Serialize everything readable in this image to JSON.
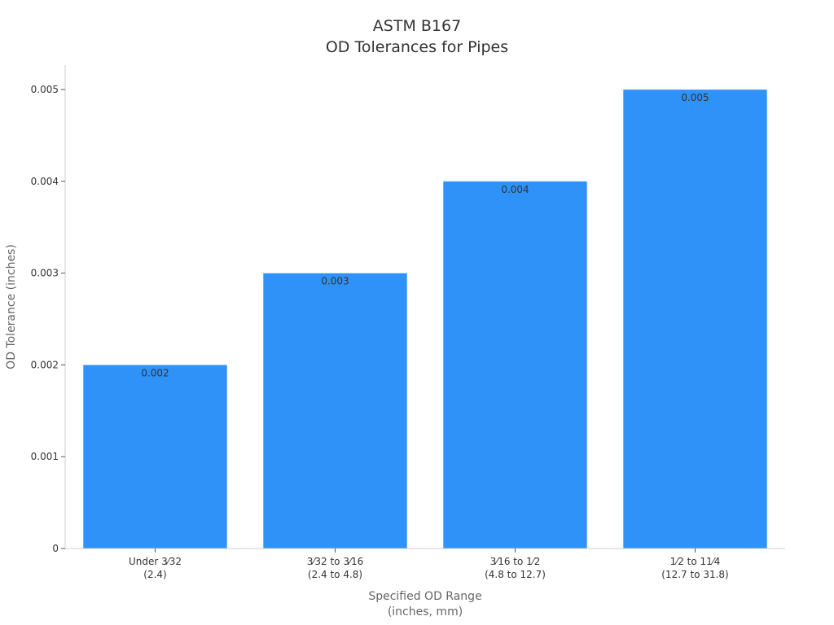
{
  "chart_data": {
    "type": "bar",
    "title_line1": "ASTM B167",
    "title_line2": "OD Tolerances for Pipes",
    "xlabel_line1": "Specified OD Range",
    "xlabel_line2": "(inches, mm)",
    "ylabel": "OD Tolerance (inches)",
    "categories": [
      {
        "line1": "Under 3⁄32",
        "line2": "(2.4)"
      },
      {
        "line1": "3⁄32 to 3⁄16",
        "line2": "(2.4 to 4.8)"
      },
      {
        "line1": "3⁄16 to 1⁄2",
        "line2": "(4.8 to 12.7)"
      },
      {
        "line1": "1⁄2 to 11⁄4",
        "line2": "(12.7 to 31.8)"
      }
    ],
    "values": [
      0.002,
      0.003,
      0.004,
      0.005
    ],
    "value_labels": [
      "0.002",
      "0.003",
      "0.004",
      "0.005"
    ],
    "ylim": [
      0,
      0.0053
    ],
    "yticks": [
      0,
      0.001,
      0.002,
      0.003,
      0.004,
      0.005
    ],
    "ytick_labels": [
      "0",
      "0.001",
      "0.002",
      "0.003",
      "0.004",
      "0.005"
    ],
    "bar_color": "#2f92f8",
    "grid": false,
    "legend": "none"
  }
}
